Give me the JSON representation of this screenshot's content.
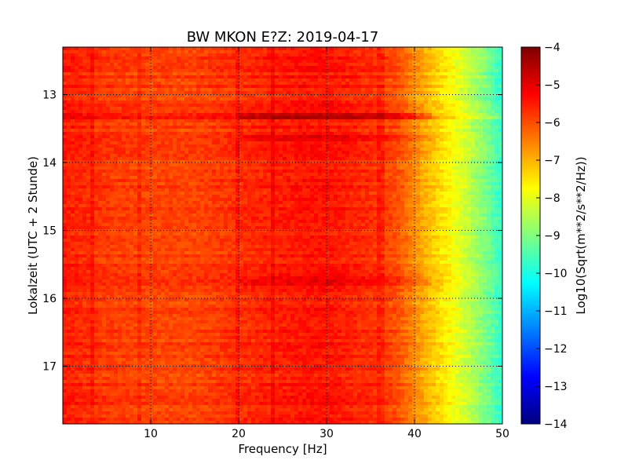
{
  "chart_data": {
    "type": "heatmap",
    "title": "BW MKON E?Z: 2019-04-17",
    "xlabel": "Frequency [Hz]",
    "ylabel": "Lokalzeit (UTC + 2 Stunde)",
    "xlim": [
      0,
      50
    ],
    "ylim": [
      17.85,
      12.3
    ],
    "y_inverted": true,
    "x_ticks": [
      10,
      20,
      30,
      40,
      50
    ],
    "y_ticks": [
      13,
      14,
      15,
      16,
      17
    ],
    "grid": "dotted",
    "colormap": "jet",
    "colorbar": {
      "label": "Log10(Sqrt(m**2/s**2/Hz))",
      "range": [
        -14,
        -4
      ],
      "ticks": [
        -4,
        -5,
        -6,
        -7,
        -8,
        -9,
        -10,
        -11,
        -12,
        -13,
        -14
      ]
    },
    "spectral_profile": {
      "frequency_hz": [
        0,
        5,
        10,
        15,
        20,
        25,
        30,
        35,
        38,
        40,
        42,
        44,
        46,
        48,
        50
      ],
      "log10_amplitude": [
        -5.5,
        -5.8,
        -5.9,
        -5.9,
        -5.7,
        -5.5,
        -5.4,
        -5.7,
        -6.0,
        -6.6,
        -7.2,
        -7.7,
        -8.3,
        -9.0,
        -9.8
      ]
    },
    "vertical_lines_hz": [
      3.5,
      8.7,
      20.0,
      24.0,
      36.2
    ],
    "horizontal_bands": [
      {
        "time": 13.33,
        "delta": 0.6
      },
      {
        "time": 13.65,
        "delta": 0.35
      },
      {
        "time": 15.75,
        "delta": 0.25
      }
    ]
  }
}
